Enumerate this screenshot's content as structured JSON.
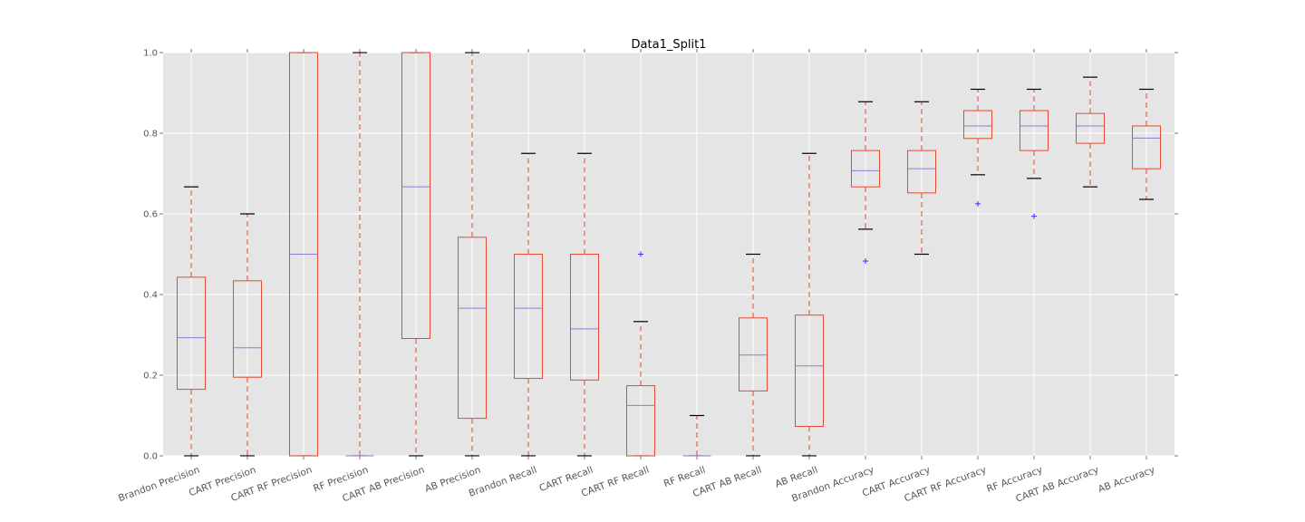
{
  "chart_data": {
    "type": "box",
    "title": "Data1_Split1",
    "xlabel": "",
    "ylabel": "",
    "ylim": [
      0.0,
      1.0
    ],
    "yticks": [
      "0.0",
      "0.2",
      "0.4",
      "0.6",
      "0.8",
      "1.0"
    ],
    "grid": true,
    "categories": [
      "Brandon Precision",
      "CART Precision",
      "CART RF Precision",
      "RF Precision",
      "CART AB Precision",
      "AB Precision",
      "Brandon Recall",
      "CART Recall",
      "CART RF Recall",
      "RF Recall",
      "CART AB Recall",
      "AB Recall",
      "Brandon Accuracy",
      "CART Accuracy",
      "CART RF Accuracy",
      "RF Accuracy",
      "CART AB Accuracy",
      "AB Accuracy"
    ],
    "boxes": [
      {
        "whislo": 0.0,
        "q1": 0.165,
        "med": 0.293,
        "q3": 0.443,
        "whishi": 0.667,
        "fliers": []
      },
      {
        "whislo": 0.0,
        "q1": 0.195,
        "med": 0.268,
        "q3": 0.434,
        "whishi": 0.6,
        "fliers": []
      },
      {
        "whislo": 0.0,
        "q1": 0.0,
        "med": 0.5,
        "q3": 1.0,
        "whishi": 1.0,
        "fliers": []
      },
      {
        "whislo": 0.0,
        "q1": 0.0,
        "med": 0.0,
        "q3": 0.0,
        "whishi": 1.0,
        "fliers": []
      },
      {
        "whislo": 0.0,
        "q1": 0.291,
        "med": 0.667,
        "q3": 1.0,
        "whishi": 1.0,
        "fliers": []
      },
      {
        "whislo": 0.0,
        "q1": 0.093,
        "med": 0.366,
        "q3": 0.542,
        "whishi": 1.0,
        "fliers": []
      },
      {
        "whislo": 0.0,
        "q1": 0.192,
        "med": 0.366,
        "q3": 0.5,
        "whishi": 0.75,
        "fliers": []
      },
      {
        "whislo": 0.0,
        "q1": 0.188,
        "med": 0.315,
        "q3": 0.5,
        "whishi": 0.75,
        "fliers": []
      },
      {
        "whislo": 0.0,
        "q1": 0.0,
        "med": 0.125,
        "q3": 0.174,
        "whishi": 0.333,
        "fliers": [
          0.5
        ]
      },
      {
        "whislo": 0.0,
        "q1": 0.0,
        "med": 0.0,
        "q3": 0.0,
        "whishi": 0.1,
        "fliers": []
      },
      {
        "whislo": 0.0,
        "q1": 0.161,
        "med": 0.25,
        "q3": 0.342,
        "whishi": 0.5,
        "fliers": []
      },
      {
        "whislo": 0.0,
        "q1": 0.073,
        "med": 0.223,
        "q3": 0.349,
        "whishi": 0.75,
        "fliers": []
      },
      {
        "whislo": 0.562,
        "q1": 0.667,
        "med": 0.707,
        "q3": 0.757,
        "whishi": 0.878,
        "fliers": [
          0.483
        ]
      },
      {
        "whislo": 0.5,
        "q1": 0.652,
        "med": 0.712,
        "q3": 0.757,
        "whishi": 0.878,
        "fliers": []
      },
      {
        "whislo": 0.697,
        "q1": 0.787,
        "med": 0.818,
        "q3": 0.856,
        "whishi": 0.909,
        "fliers": [
          0.625
        ]
      },
      {
        "whislo": 0.688,
        "q1": 0.757,
        "med": 0.818,
        "q3": 0.856,
        "whishi": 0.909,
        "fliers": [
          0.594
        ]
      },
      {
        "whislo": 0.667,
        "q1": 0.775,
        "med": 0.818,
        "q3": 0.849,
        "whishi": 0.939,
        "fliers": []
      },
      {
        "whislo": 0.636,
        "q1": 0.712,
        "med": 0.788,
        "q3": 0.818,
        "whishi": 0.909,
        "fliers": []
      }
    ],
    "colors": {
      "plot_background": "#e5e5e5",
      "grid": "#ffffff",
      "box": "#e24a33",
      "whisker": "#e24a33",
      "cap": "#000000",
      "median": "#8b7fd0",
      "flier": "#3333ff"
    }
  }
}
